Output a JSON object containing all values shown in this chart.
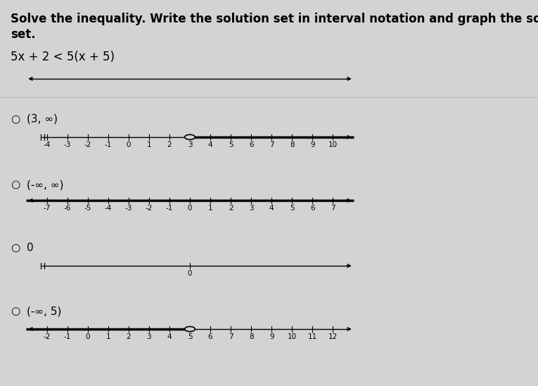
{
  "background_color": "#d3d3d3",
  "title_line1": "Solve the inequality. Write the solution set in interval notation and graph the solution",
  "title_line2": "set.",
  "equation": "5x + 2 < 5(x + 5)",
  "top_nl": {
    "x_min": -10,
    "x_max": 10,
    "ticks": [],
    "arrow_left": true,
    "arrow_right": true,
    "shaded_from": null,
    "shaded_to": null,
    "open_circle_at": null
  },
  "options": [
    {
      "label": "(3, ∞)",
      "radio": true,
      "number_line": {
        "x_min": -4,
        "x_max": 10,
        "ticks": [
          -4,
          -3,
          -2,
          -1,
          0,
          1,
          2,
          3,
          4,
          5,
          6,
          7,
          8,
          9,
          10
        ],
        "arrow_left": false,
        "arrow_right": true,
        "shaded_from": 3,
        "shaded_to": null,
        "open_circle_at": 3
      }
    },
    {
      "label": "(-∞, ∞)",
      "radio": true,
      "number_line": {
        "x_min": -7,
        "x_max": 7,
        "ticks": [
          -7,
          -6,
          -5,
          -4,
          -3,
          -2,
          -1,
          0,
          1,
          2,
          3,
          4,
          5,
          6,
          7
        ],
        "arrow_left": true,
        "arrow_right": true,
        "shaded_from": null,
        "shaded_to": null,
        "open_circle_at": null
      }
    },
    {
      "label": "0",
      "radio": true,
      "number_line": {
        "x_min": -7,
        "x_max": 7,
        "ticks": [
          0
        ],
        "arrow_left": false,
        "arrow_right": true,
        "shaded_from": null,
        "shaded_to": null,
        "open_circle_at": null
      }
    },
    {
      "label": "(-∞, 5)",
      "radio": true,
      "number_line": {
        "x_min": -2,
        "x_max": 12,
        "ticks": [
          -2,
          -1,
          0,
          1,
          2,
          3,
          4,
          5,
          6,
          7,
          8,
          9,
          10,
          11,
          12
        ],
        "arrow_left": true,
        "arrow_right": true,
        "shaded_from": null,
        "shaded_to": 5,
        "open_circle_at": 5
      }
    }
  ],
  "font_size_title": 12,
  "font_size_equation": 12,
  "font_size_option_label": 11,
  "font_size_tick": 7.5
}
